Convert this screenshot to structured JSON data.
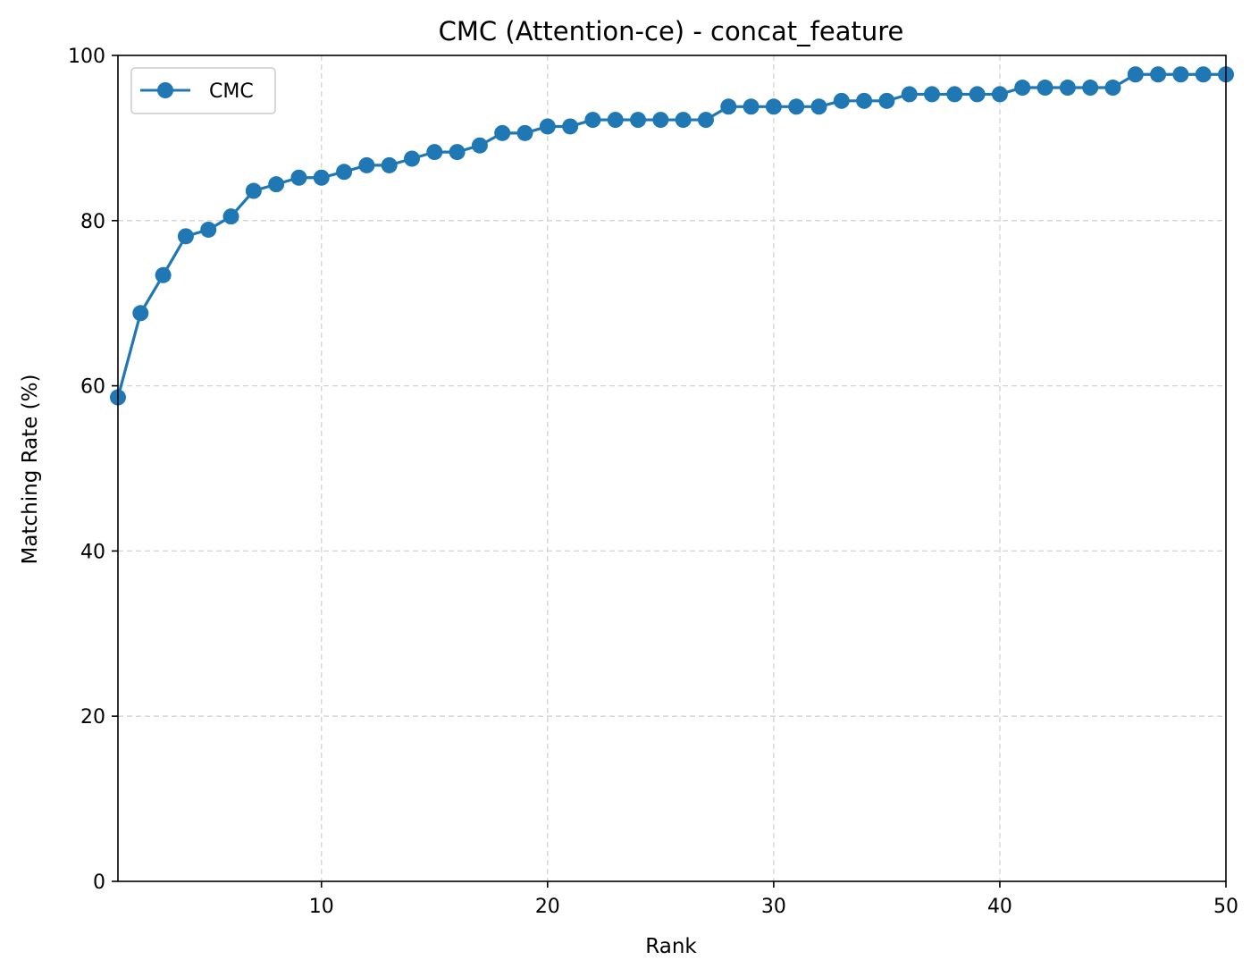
{
  "chart_data": {
    "type": "line",
    "title": "CMC (Attention-ce) - concat_feature",
    "xlabel": "Rank",
    "ylabel": "Matching Rate (%)",
    "xlim": [
      1,
      50
    ],
    "ylim": [
      0,
      100
    ],
    "xticks": [
      10,
      20,
      30,
      40,
      50
    ],
    "yticks": [
      0,
      20,
      40,
      60,
      80,
      100
    ],
    "grid": true,
    "legend_position": "upper-left",
    "x": [
      1,
      2,
      3,
      4,
      5,
      6,
      7,
      8,
      9,
      10,
      11,
      12,
      13,
      14,
      15,
      16,
      17,
      18,
      19,
      20,
      21,
      22,
      23,
      24,
      25,
      26,
      27,
      28,
      29,
      30,
      31,
      32,
      33,
      34,
      35,
      36,
      37,
      38,
      39,
      40,
      41,
      42,
      43,
      44,
      45,
      46,
      47,
      48,
      49,
      50
    ],
    "series": [
      {
        "name": "CMC",
        "color": "#1f77b4",
        "marker": "circle",
        "values": [
          58.6,
          68.8,
          73.4,
          78.1,
          78.9,
          80.5,
          83.6,
          84.4,
          85.2,
          85.2,
          85.9,
          86.7,
          86.7,
          87.5,
          88.3,
          88.3,
          89.1,
          90.6,
          90.6,
          91.4,
          91.4,
          92.2,
          92.2,
          92.2,
          92.2,
          92.2,
          92.2,
          93.8,
          93.8,
          93.8,
          93.8,
          93.8,
          94.5,
          94.5,
          94.5,
          95.3,
          95.3,
          95.3,
          95.3,
          95.3,
          96.1,
          96.1,
          96.1,
          96.1,
          96.1,
          97.7,
          97.7,
          97.7,
          97.7,
          97.7
        ]
      }
    ]
  }
}
